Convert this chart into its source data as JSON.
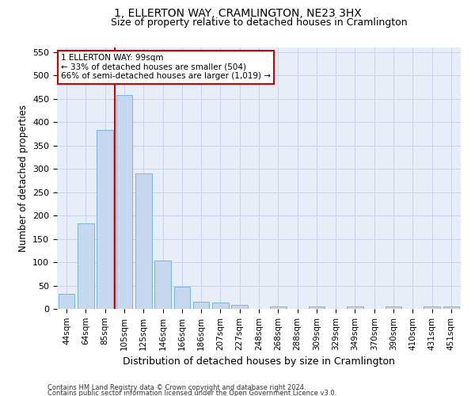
{
  "title": "1, ELLERTON WAY, CRAMLINGTON, NE23 3HX",
  "subtitle": "Size of property relative to detached houses in Cramlington",
  "xlabel": "Distribution of detached houses by size in Cramlington",
  "ylabel": "Number of detached properties",
  "footer_line1": "Contains HM Land Registry data © Crown copyright and database right 2024.",
  "footer_line2": "Contains public sector information licensed under the Open Government Licence v3.0.",
  "bar_labels": [
    "44sqm",
    "64sqm",
    "85sqm",
    "105sqm",
    "125sqm",
    "146sqm",
    "166sqm",
    "186sqm",
    "207sqm",
    "227sqm",
    "248sqm",
    "268sqm",
    "288sqm",
    "309sqm",
    "329sqm",
    "349sqm",
    "370sqm",
    "390sqm",
    "410sqm",
    "431sqm",
    "451sqm"
  ],
  "bar_values": [
    33,
    183,
    383,
    458,
    290,
    103,
    48,
    16,
    13,
    8,
    0,
    5,
    0,
    5,
    0,
    5,
    0,
    5,
    0,
    5,
    5
  ],
  "bar_color": "#c5d8f0",
  "bar_edgecolor": "#6baed6",
  "ylim": [
    0,
    560
  ],
  "yticks": [
    0,
    50,
    100,
    150,
    200,
    250,
    300,
    350,
    400,
    450,
    500,
    550
  ],
  "vline_x": 2.5,
  "annotation_text": "1 ELLERTON WAY: 99sqm\n← 33% of detached houses are smaller (504)\n66% of semi-detached houses are larger (1,019) →",
  "annotation_box_color": "#ffffff",
  "annotation_box_edgecolor": "#cc0000",
  "vline_color": "#cc0000",
  "background_color": "#ffffff",
  "plot_bg_color": "#e8eef8",
  "grid_color": "#c8d4e8"
}
